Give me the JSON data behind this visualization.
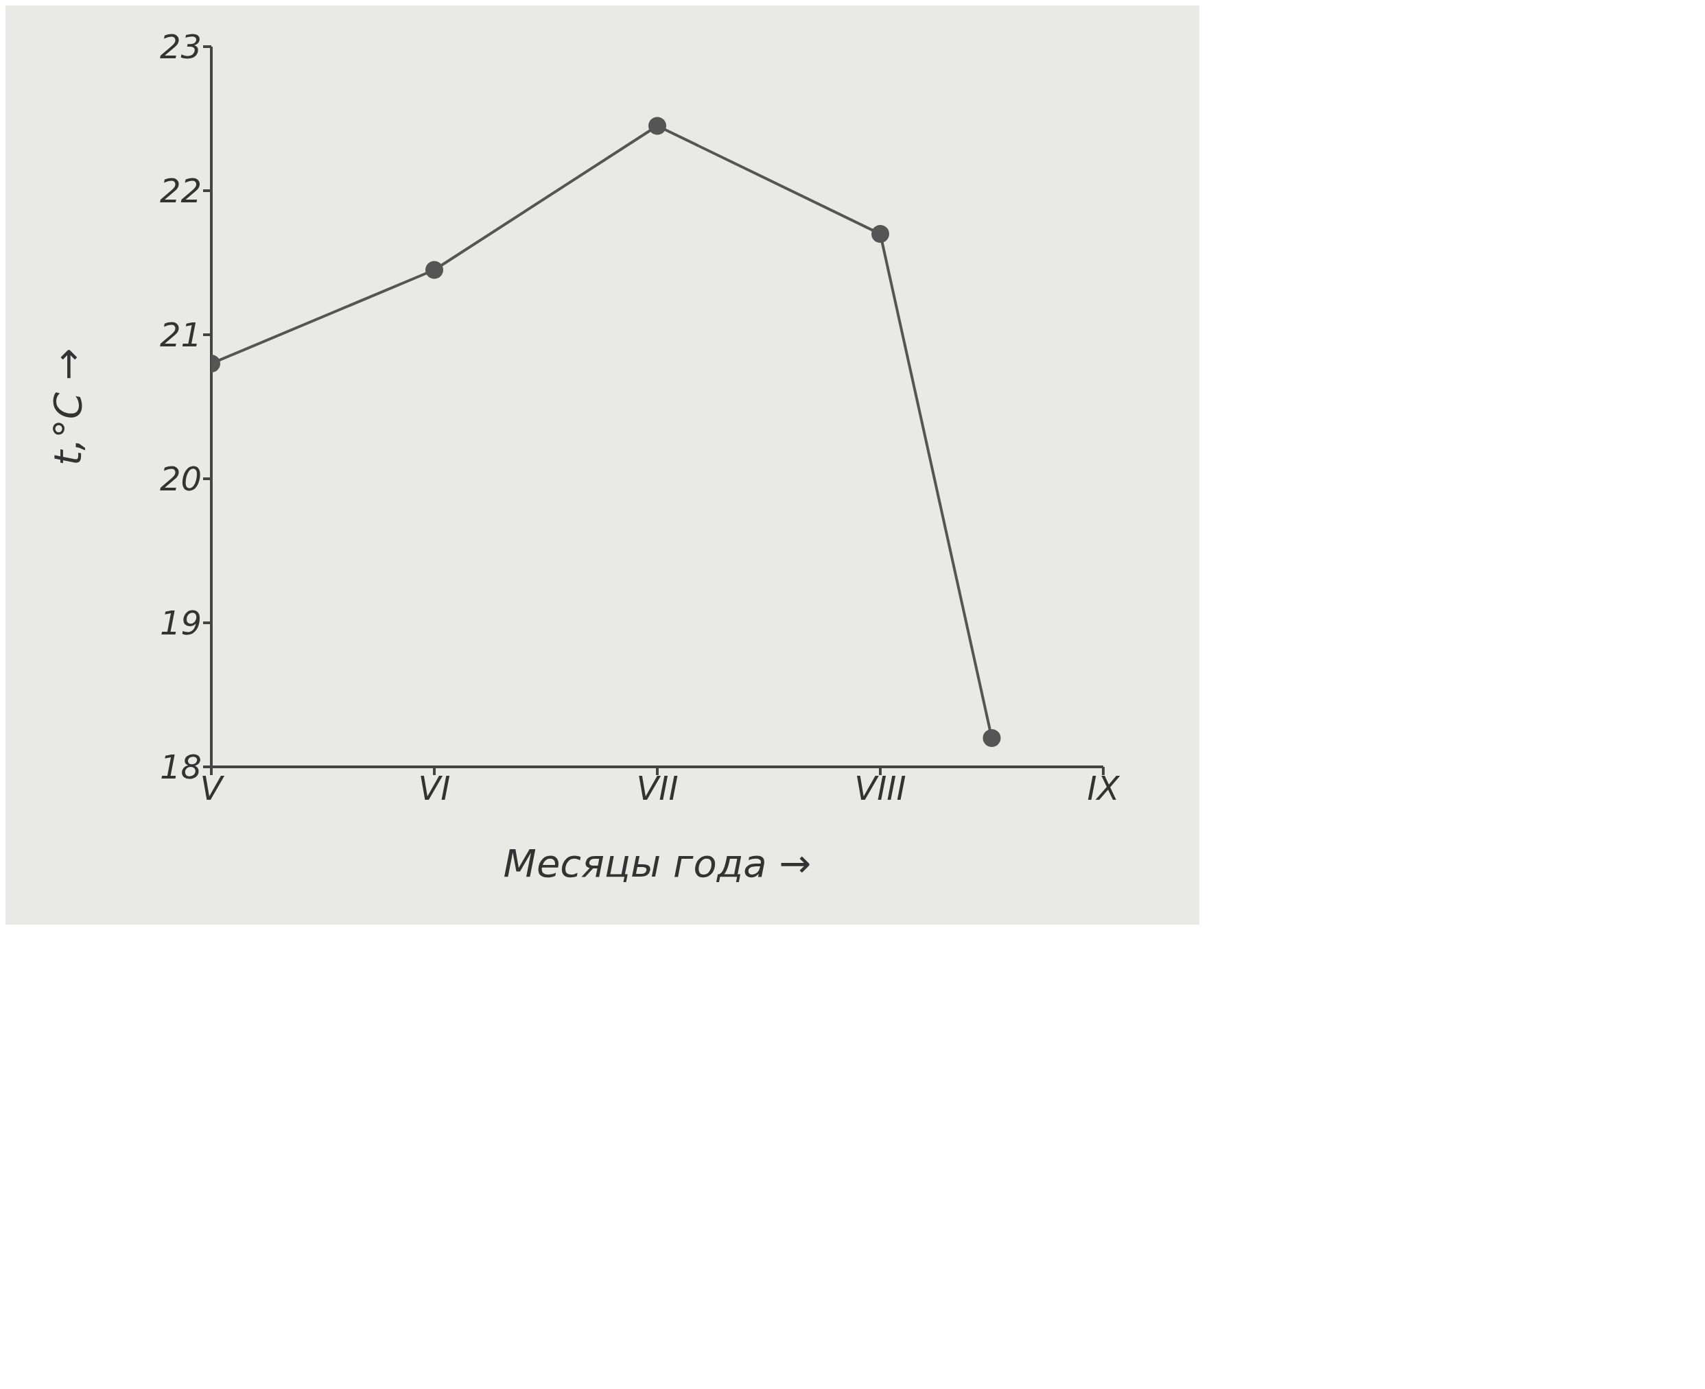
{
  "chart_data": {
    "type": "line",
    "xlabel": "Месяцы года →",
    "ylabel": "t,°C →",
    "categories": [
      "V",
      null,
      "VI",
      null,
      "VII",
      null,
      "VIII",
      null,
      "IX"
    ],
    "series": [
      {
        "color": "#555555",
        "values": [
          20.8,
          null,
          21.45,
          null,
          22.45,
          null,
          21.7,
          18.2,
          null
        ]
      }
    ],
    "ylim": [
      18,
      23
    ],
    "yticks": [
      18,
      19,
      20,
      21,
      22,
      23
    ],
    "grid": false,
    "legend": false,
    "marker": "circle",
    "line_style": "solid"
  }
}
